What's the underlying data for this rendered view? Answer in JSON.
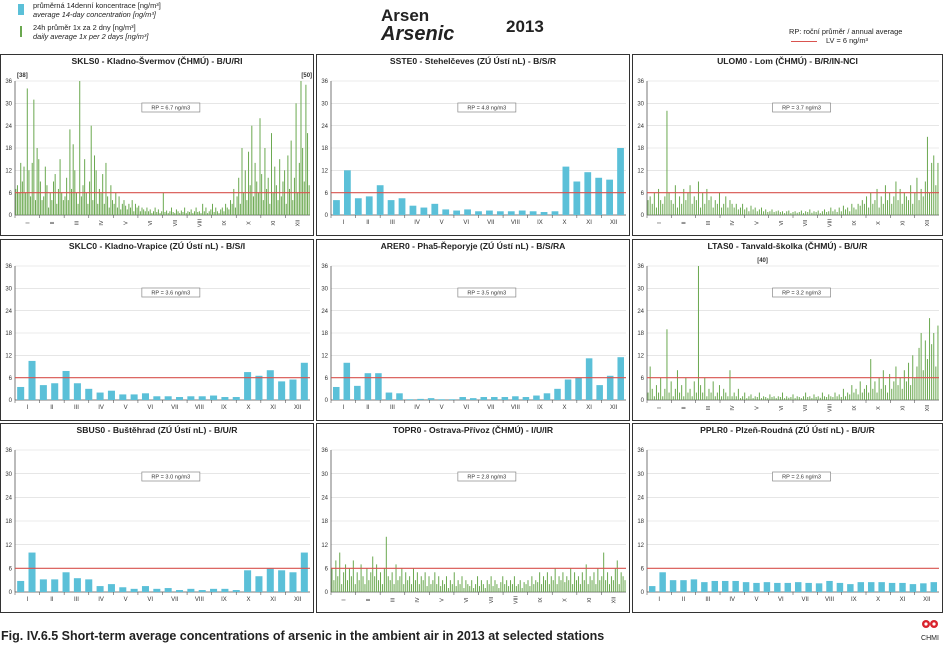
{
  "legend": {
    "item1_cs": "průměrná 14denní koncentrace [ng/m³]",
    "item1_en": "average 14-day concentration [ng/m³]",
    "item2_cs": "24h průměr 1x za 2 dny [ng/m³]",
    "item2_en": "daily average 1x per 2 days [ng/m³]",
    "rp_label": "RP: roční průměr / annual average",
    "lv_label": "LV = 6 ng/m³"
  },
  "title_cs": "Arsen",
  "title_en": "Arsenic",
  "year": "2013",
  "caption": "Fig. IV.6.5  Short-term average concentrations of arsenic in the ambient air in 2013 at selected stations",
  "colors": {
    "bar": "#5bc0d8",
    "line": "#6aa84f",
    "limit": "#d9534f"
  },
  "months": [
    "I",
    "II",
    "III",
    "IV",
    "V",
    "VI",
    "VII",
    "VIII",
    "IX",
    "X",
    "XI",
    "XII"
  ],
  "chart_data": [
    {
      "type": "line",
      "title": "SKLS0 - Kladno-Švermov (ČHMÚ) - B/U/RI",
      "rp": "RP = 6.7 ng/m3",
      "ylim": [
        0,
        36
      ],
      "yticks": [
        0,
        6,
        12,
        18,
        24,
        30,
        36
      ],
      "limit": 6,
      "annotations": [
        {
          "text": "[38]",
          "x": 4.5,
          "y": 36
        },
        {
          "text": "[50]",
          "x": 178,
          "y": 36
        }
      ],
      "values": [
        7,
        8,
        6,
        14,
        9,
        13,
        6,
        34,
        12,
        5,
        14,
        31,
        4,
        18,
        15,
        9,
        4,
        5,
        13,
        8,
        2,
        6,
        4,
        9,
        11,
        3,
        7,
        15,
        6,
        4,
        5,
        10,
        4,
        23,
        7,
        19,
        12,
        6,
        3,
        36,
        5,
        8,
        15,
        6,
        3,
        9,
        24,
        4,
        16,
        12,
        3,
        7,
        6,
        11,
        3,
        14,
        5,
        2,
        8,
        4,
        3,
        6,
        2,
        5,
        1.5,
        3,
        4,
        2.5,
        1.5,
        3,
        2,
        4,
        1,
        3,
        2,
        2.5,
        1,
        2,
        1.5,
        1,
        2,
        1,
        1.5,
        0.5,
        1,
        2,
        0.8,
        1.5,
        0.5,
        1,
        6,
        0.8,
        1.2,
        0.5,
        1,
        2,
        0.8,
        0.5,
        1.5,
        1,
        0.5,
        1.2,
        0.8,
        2,
        0.5,
        1,
        0.8,
        1.5,
        0.5,
        1,
        2,
        0.8,
        1,
        0.5,
        3,
        1,
        2,
        0.5,
        1,
        1.5,
        3,
        0.8,
        2,
        1,
        0.5,
        1.5,
        2,
        1,
        3,
        2,
        1.5,
        4,
        3,
        7,
        2,
        5,
        10,
        3,
        18,
        6,
        12,
        4,
        17,
        8,
        24,
        5,
        14,
        9,
        6,
        26,
        11,
        4,
        18,
        7,
        10,
        3,
        22,
        6,
        13,
        8,
        4,
        15,
        5,
        9,
        12,
        3,
        16,
        7,
        20,
        4,
        10,
        30,
        6,
        14,
        36,
        18,
        9,
        35,
        22,
        8
      ]
    },
    {
      "type": "bar",
      "title": "SSTE0 - Stehelčeves (ZÚ Ústí nL) - B/S/R",
      "rp": "RP = 4.8 ng/m3",
      "ylim": [
        0,
        36
      ],
      "yticks": [
        0,
        6,
        12,
        18,
        24,
        30,
        36
      ],
      "limit": 6,
      "values": [
        4,
        12,
        4.5,
        5,
        8,
        4,
        4.5,
        2.5,
        2,
        3,
        1.5,
        1.2,
        1.5,
        1,
        1.2,
        1,
        1,
        1.2,
        1,
        0.8,
        1,
        13,
        9,
        11.5,
        10,
        9.5,
        18
      ]
    },
    {
      "type": "line",
      "title": "ULOM0 - Lom (ČHMÚ) - B/R/IN-NCI",
      "rp": "RP = 3.7 ng/m3",
      "ylim": [
        0,
        36
      ],
      "yticks": [
        0,
        6,
        12,
        18,
        24,
        30,
        36
      ],
      "limit": 6,
      "values": [
        4,
        5,
        3,
        6,
        2,
        7,
        4,
        3,
        5,
        28,
        6,
        4,
        3,
        8,
        2,
        5,
        3,
        7,
        4,
        6,
        8,
        3,
        5,
        4,
        9,
        2,
        6,
        3,
        7,
        4,
        5,
        2,
        4,
        3,
        6,
        2,
        3,
        5,
        2,
        4,
        3,
        2,
        3,
        1.5,
        2,
        3,
        1.5,
        2,
        1,
        2.5,
        1.5,
        2,
        1,
        1.5,
        2,
        1,
        1.5,
        0.8,
        1,
        1.5,
        0.8,
        1,
        1.2,
        0.8,
        1,
        0.5,
        1,
        1.2,
        0.5,
        0.8,
        1,
        0.6,
        0.8,
        1.2,
        0.5,
        1,
        0.8,
        1.5,
        0.6,
        1,
        0.8,
        1.2,
        0.5,
        1,
        1.5,
        0.8,
        1,
        2,
        1,
        1.5,
        0.8,
        2,
        1,
        2.5,
        1.5,
        2,
        1,
        3,
        2,
        1.5,
        3,
        2.5,
        4,
        3,
        5,
        2,
        6,
        3,
        4,
        7,
        2,
        5,
        3,
        8,
        4,
        6,
        3,
        5,
        9,
        4,
        7,
        3,
        6,
        5,
        4,
        8,
        3,
        6,
        10,
        4,
        7,
        5,
        9,
        21,
        6,
        14,
        16,
        8,
        14
      ]
    },
    {
      "type": "bar",
      "title": "SKLC0 - Kladno-Vrapice (ZÚ Ústí nL) - B/S/I",
      "rp": "RP = 3.6 ng/m3",
      "ylim": [
        0,
        36
      ],
      "yticks": [
        0,
        6,
        12,
        18,
        24,
        30,
        36
      ],
      "limit": 6,
      "values": [
        3.5,
        10.5,
        4,
        4.5,
        7.8,
        4.5,
        3,
        2,
        2.5,
        1.5,
        1.5,
        1.8,
        1,
        1,
        0.8,
        1,
        1,
        1.2,
        0.8,
        0.8,
        7.5,
        6.5,
        8,
        5,
        5.5,
        10
      ]
    },
    {
      "type": "bar",
      "title": "ARER0 - Pha5-Řeporyje (ZÚ Ústí nL) - B/S/RA",
      "rp": "RP = 3.5 ng/m3",
      "ylim": [
        0,
        36
      ],
      "yticks": [
        0,
        6,
        12,
        18,
        24,
        30,
        36
      ],
      "limit": 6,
      "values": [
        3.5,
        10,
        3.8,
        7.2,
        7.2,
        2,
        1.8,
        0.2,
        0.3,
        0.5,
        0.2,
        0.2,
        0.8,
        0.5,
        0.8,
        0.8,
        0.8,
        1,
        0.8,
        1.2,
        1.8,
        3,
        5.5,
        6,
        11.2,
        4,
        6.5,
        11.5
      ]
    },
    {
      "type": "line",
      "title": "LTAS0 - Tanvald-školka (ČHMÚ) - B/U/R",
      "rp": "RP = 3.2 ng/m3",
      "ylim": [
        0,
        36
      ],
      "yticks": [
        0,
        6,
        12,
        18,
        24,
        30,
        36
      ],
      "limit": 6,
      "annotations": [
        {
          "text": "[40]",
          "x": 55,
          "y": 36
        }
      ],
      "values": [
        2,
        9,
        3,
        1,
        4,
        2,
        6,
        1,
        3,
        19,
        2,
        5,
        1,
        3,
        8,
        2,
        4,
        1,
        6,
        2,
        3,
        1,
        5,
        2,
        36,
        4,
        2,
        6,
        1,
        3,
        2,
        5,
        1,
        2,
        4,
        1,
        3,
        2,
        1,
        8,
        1,
        2,
        1,
        3,
        0.5,
        1,
        2,
        0.5,
        1,
        1.5,
        0.5,
        1,
        0.8,
        2,
        0.5,
        1,
        0.8,
        0.5,
        1.5,
        0.8,
        1,
        0.5,
        1,
        0.8,
        2,
        0.5,
        1,
        0.6,
        0.8,
        1.5,
        0.5,
        1,
        0.8,
        0.5,
        1,
        2,
        0.8,
        1,
        0.5,
        1.5,
        0.8,
        1,
        0.6,
        2,
        1,
        0.8,
        1.5,
        1,
        0.8,
        2,
        1,
        1.5,
        0.8,
        3,
        1,
        2,
        1.5,
        4,
        2,
        3,
        1.5,
        5,
        2,
        3,
        4,
        2,
        11,
        3,
        5,
        2,
        6,
        3,
        8,
        4,
        2,
        7,
        3,
        5,
        9,
        4,
        6,
        3,
        8,
        5,
        10,
        4,
        12,
        6,
        9,
        14,
        18,
        8,
        16,
        11,
        22,
        15,
        18,
        9,
        20
      ]
    },
    {
      "type": "bar",
      "title": "SBUS0 - Buštěhrad (ZÚ Ústí nL) - B/U/R",
      "rp": "RP = 3.0 ng/m3",
      "ylim": [
        0,
        36
      ],
      "yticks": [
        0,
        6,
        12,
        18,
        24,
        30,
        36
      ],
      "limit": 6,
      "values": [
        2.8,
        10,
        3.2,
        3.2,
        5,
        3.5,
        3.2,
        1.5,
        2,
        1.2,
        0.8,
        1.5,
        0.8,
        1,
        0.5,
        0.8,
        0.5,
        0.8,
        0.8,
        0.5,
        5.5,
        4,
        6,
        5.5,
        5,
        10
      ]
    },
    {
      "type": "line",
      "title": "TOPR0 - Ostrava-Přívoz (ČHMÚ) - I/U/IR",
      "rp": "RP = 2.8 ng/m3",
      "ylim": [
        0,
        36
      ],
      "yticks": [
        0,
        6,
        12,
        18,
        24,
        30,
        36
      ],
      "limit": 6,
      "values": [
        6,
        3,
        8,
        4,
        10,
        2,
        5,
        7,
        3,
        6,
        4,
        8,
        2,
        5,
        3,
        7,
        4,
        2,
        6,
        3,
        5,
        9,
        4,
        7,
        3,
        5,
        2,
        6,
        14,
        4,
        3,
        5,
        2,
        7,
        3,
        4,
        6,
        2,
        5,
        3,
        4,
        2,
        6,
        3,
        5,
        2,
        4,
        3,
        5,
        1.5,
        4,
        2,
        3,
        5,
        2,
        4,
        1.5,
        3,
        2,
        4,
        1,
        3,
        2,
        5,
        1.5,
        3,
        2,
        4,
        1,
        3,
        2,
        1.5,
        3,
        1,
        2,
        4,
        1.5,
        3,
        2,
        1,
        3,
        2,
        4,
        1.5,
        3,
        2,
        1,
        2.5,
        4,
        2,
        3,
        1.5,
        3,
        2,
        4,
        1.5,
        2,
        3,
        1,
        2.5,
        2,
        3,
        1.5,
        4,
        2,
        3,
        2.5,
        5,
        2,
        4,
        3,
        5,
        2,
        4,
        3,
        6,
        2,
        4,
        3,
        5,
        2.5,
        4,
        3,
        6,
        2,
        5,
        3,
        4,
        2,
        5,
        3,
        7,
        2,
        4,
        3,
        5,
        2,
        6,
        3,
        4,
        10,
        3,
        5,
        2,
        4,
        3,
        6,
        8,
        2,
        5,
        4,
        3
      ]
    },
    {
      "type": "bar",
      "title": "PPLR0 - Plzeň-Roudná (ZÚ Ústí nL) - B/U/R",
      "rp": "RP = 2.6 ng/m3",
      "ylim": [
        0,
        36
      ],
      "yticks": [
        0,
        6,
        12,
        18,
        24,
        30,
        36
      ],
      "limit": 6,
      "values": [
        1.5,
        5,
        3,
        3,
        3.2,
        2.5,
        2.8,
        2.8,
        2.8,
        2.5,
        2.3,
        2.5,
        2.3,
        2.3,
        2.5,
        2.3,
        2.2,
        2.8,
        2.3,
        2,
        2.5,
        2.5,
        2.5,
        2.3,
        2.3,
        2,
        2.2,
        2.5
      ]
    }
  ]
}
